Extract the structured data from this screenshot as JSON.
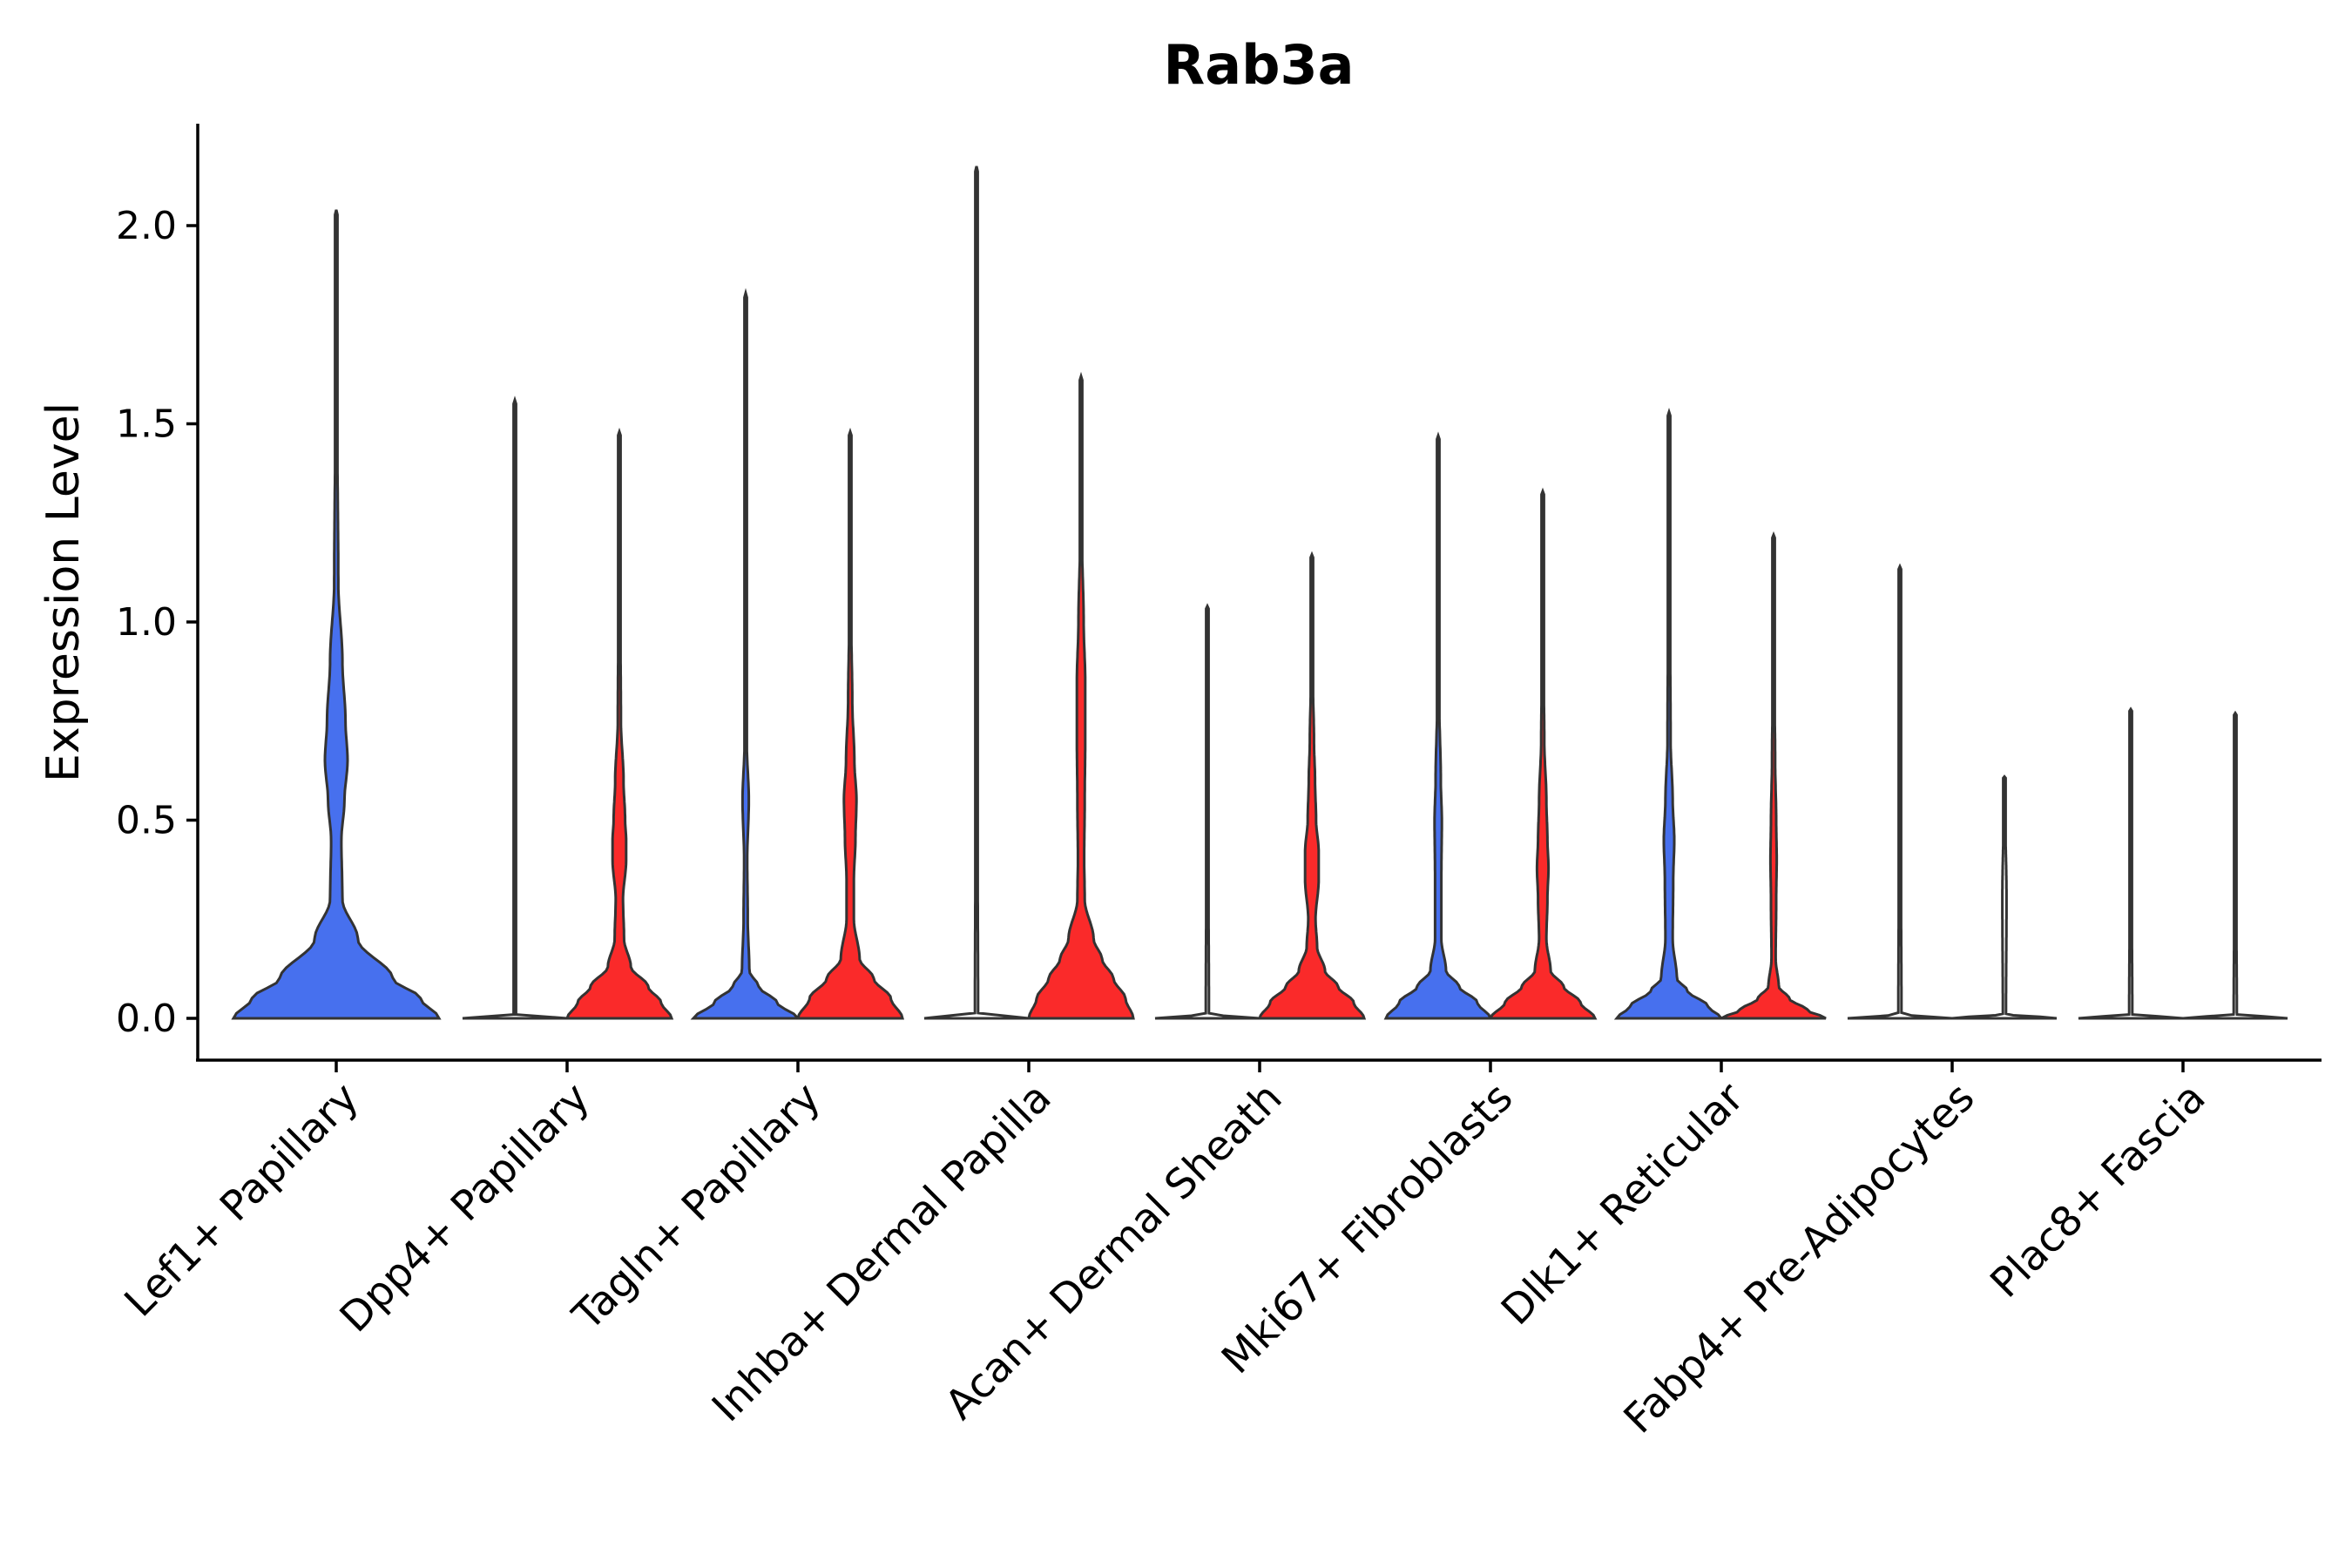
{
  "chart_data": {
    "type": "violin",
    "title": "Rab3a",
    "xlabel": "",
    "ylabel": "Expression Level",
    "ylim": [
      -0.11,
      2.25
    ],
    "yticks": [
      0.0,
      0.5,
      1.0,
      1.5,
      2.0
    ],
    "ytick_labels": [
      "0.0",
      "0.5",
      "1.0",
      "1.5",
      "2.0"
    ],
    "categories": [
      "Lef1+ Papillary",
      "Dpp4+ Papillary",
      "Tagln+ Papillary",
      "Inhba+ Dermal Papilla",
      "Acan+ Dermal Sheath",
      "Mki67+ Fibroblasts",
      "Dlk1+ Reticular",
      "Fabp4+ Pre-Adipocytes",
      "Plac8+ Fascia"
    ],
    "colors": {
      "blue": "#4770ee",
      "red": "#fa2a2a",
      "none": "#ffffff"
    },
    "violins": [
      {
        "category": "Lef1+ Papillary",
        "group": "blue",
        "side": "single",
        "max": 2.04,
        "profile": [
          [
            0,
            1
          ],
          [
            0.05,
            0.82
          ],
          [
            0.1,
            0.55
          ],
          [
            0.2,
            0.21
          ],
          [
            0.3,
            0.06
          ],
          [
            0.45,
            0.05
          ],
          [
            0.55,
            0.08
          ],
          [
            0.65,
            0.11
          ],
          [
            0.75,
            0.09
          ],
          [
            0.9,
            0.06
          ],
          [
            1.1,
            0.02
          ],
          [
            1.5,
            0.01
          ],
          [
            2.04,
            0
          ]
        ]
      },
      {
        "category": "Dpp4+ Papillary",
        "group": "none",
        "side": "left",
        "max": 1.56,
        "profile": [
          [
            0,
            1
          ],
          [
            0.01,
            0.02
          ],
          [
            0.5,
            0.02
          ],
          [
            1.56,
            0
          ]
        ]
      },
      {
        "category": "Dpp4+ Papillary",
        "group": "red",
        "side": "right",
        "max": 1.48,
        "profile": [
          [
            0,
            1
          ],
          [
            0.04,
            0.8
          ],
          [
            0.08,
            0.55
          ],
          [
            0.13,
            0.22
          ],
          [
            0.2,
            0.09
          ],
          [
            0.3,
            0.07
          ],
          [
            0.4,
            0.13
          ],
          [
            0.45,
            0.13
          ],
          [
            0.5,
            0.11
          ],
          [
            0.6,
            0.08
          ],
          [
            0.75,
            0.03
          ],
          [
            1.0,
            0.02
          ],
          [
            1.48,
            0
          ]
        ]
      },
      {
        "category": "Tagln+ Papillary",
        "group": "blue",
        "side": "left",
        "max": 1.83,
        "profile": [
          [
            0,
            1
          ],
          [
            0.04,
            0.6
          ],
          [
            0.08,
            0.25
          ],
          [
            0.12,
            0.07
          ],
          [
            0.25,
            0.04
          ],
          [
            0.4,
            0.03
          ],
          [
            0.55,
            0.06
          ],
          [
            0.7,
            0.02
          ],
          [
            1.0,
            0.01
          ],
          [
            1.83,
            0
          ]
        ]
      },
      {
        "category": "Tagln+ Papillary",
        "group": "red",
        "side": "right",
        "max": 1.48,
        "profile": [
          [
            0,
            1
          ],
          [
            0.05,
            0.78
          ],
          [
            0.1,
            0.45
          ],
          [
            0.15,
            0.18
          ],
          [
            0.25,
            0.07
          ],
          [
            0.35,
            0.07
          ],
          [
            0.45,
            0.1
          ],
          [
            0.55,
            0.12
          ],
          [
            0.65,
            0.08
          ],
          [
            0.8,
            0.04
          ],
          [
            1.0,
            0.02
          ],
          [
            1.48,
            0
          ]
        ]
      },
      {
        "category": "Inhba+ Dermal Papilla",
        "group": "none",
        "side": "left",
        "max": 2.15,
        "profile": [
          [
            0,
            1
          ],
          [
            0.01,
            0.03
          ],
          [
            0.5,
            0.02
          ],
          [
            2.15,
            0
          ]
        ]
      },
      {
        "category": "Inhba+ Dermal Papilla",
        "group": "red",
        "side": "right",
        "max": 1.62,
        "profile": [
          [
            0,
            1
          ],
          [
            0.05,
            0.85
          ],
          [
            0.1,
            0.62
          ],
          [
            0.15,
            0.4
          ],
          [
            0.2,
            0.24
          ],
          [
            0.3,
            0.07
          ],
          [
            0.4,
            0.06
          ],
          [
            0.55,
            0.07
          ],
          [
            0.7,
            0.08
          ],
          [
            0.85,
            0.08
          ],
          [
            1.0,
            0.05
          ],
          [
            1.2,
            0.02
          ],
          [
            1.62,
            0
          ]
        ]
      },
      {
        "category": "Acan+ Dermal Sheath",
        "group": "none",
        "side": "left",
        "max": 1.04,
        "profile": [
          [
            0,
            1
          ],
          [
            0.01,
            0.03
          ],
          [
            0.4,
            0.02
          ],
          [
            1.04,
            0
          ]
        ]
      },
      {
        "category": "Acan+ Dermal Sheath",
        "group": "red",
        "side": "right",
        "max": 1.17,
        "profile": [
          [
            0,
            1
          ],
          [
            0.04,
            0.8
          ],
          [
            0.08,
            0.5
          ],
          [
            0.12,
            0.25
          ],
          [
            0.18,
            0.1
          ],
          [
            0.25,
            0.07
          ],
          [
            0.35,
            0.13
          ],
          [
            0.42,
            0.13
          ],
          [
            0.5,
            0.08
          ],
          [
            0.6,
            0.06
          ],
          [
            0.7,
            0.04
          ],
          [
            0.85,
            0.02
          ],
          [
            1.17,
            0
          ]
        ]
      },
      {
        "category": "Mki67+ Fibroblasts",
        "group": "blue",
        "side": "left",
        "max": 1.47,
        "profile": [
          [
            0,
            1
          ],
          [
            0.04,
            0.75
          ],
          [
            0.08,
            0.4
          ],
          [
            0.12,
            0.15
          ],
          [
            0.2,
            0.06
          ],
          [
            0.35,
            0.06
          ],
          [
            0.5,
            0.07
          ],
          [
            0.6,
            0.05
          ],
          [
            0.8,
            0.02
          ],
          [
            1.0,
            0.01
          ],
          [
            1.47,
            0
          ]
        ]
      },
      {
        "category": "Mki67+ Fibroblasts",
        "group": "red",
        "side": "right",
        "max": 1.33,
        "profile": [
          [
            0,
            1
          ],
          [
            0.04,
            0.72
          ],
          [
            0.08,
            0.4
          ],
          [
            0.12,
            0.15
          ],
          [
            0.2,
            0.07
          ],
          [
            0.3,
            0.09
          ],
          [
            0.38,
            0.11
          ],
          [
            0.45,
            0.09
          ],
          [
            0.55,
            0.07
          ],
          [
            0.7,
            0.03
          ],
          [
            0.9,
            0.015
          ],
          [
            1.33,
            0
          ]
        ]
      },
      {
        "category": "Dlk1+ Reticular",
        "group": "blue",
        "side": "left",
        "max": 1.53,
        "profile": [
          [
            0,
            1
          ],
          [
            0.03,
            0.75
          ],
          [
            0.07,
            0.35
          ],
          [
            0.1,
            0.15
          ],
          [
            0.2,
            0.07
          ],
          [
            0.35,
            0.08
          ],
          [
            0.45,
            0.1
          ],
          [
            0.55,
            0.07
          ],
          [
            0.7,
            0.03
          ],
          [
            1.0,
            0.02
          ],
          [
            1.53,
            0
          ]
        ]
      },
      {
        "category": "Dlk1+ Reticular",
        "group": "red",
        "side": "right",
        "max": 1.22,
        "profile": [
          [
            0,
            1
          ],
          [
            0.02,
            0.65
          ],
          [
            0.05,
            0.3
          ],
          [
            0.08,
            0.1
          ],
          [
            0.15,
            0.04
          ],
          [
            0.3,
            0.05
          ],
          [
            0.4,
            0.06
          ],
          [
            0.5,
            0.05
          ],
          [
            0.65,
            0.03
          ],
          [
            0.85,
            0.015
          ],
          [
            1.22,
            0
          ]
        ]
      },
      {
        "category": "Fabp4+ Pre-Adipocytes",
        "group": "none",
        "side": "left",
        "max": 1.14,
        "profile": [
          [
            0,
            1
          ],
          [
            0.01,
            0.03
          ],
          [
            0.4,
            0.02
          ],
          [
            1.14,
            0
          ]
        ]
      },
      {
        "category": "Fabp4+ Pre-Adipocytes",
        "group": "none",
        "side": "right",
        "max": 0.61,
        "profile": [
          [
            0,
            1
          ],
          [
            0.01,
            0.03
          ],
          [
            0.3,
            0.04
          ],
          [
            0.61,
            0
          ]
        ]
      },
      {
        "category": "Plac8+ Fascia",
        "group": "none",
        "side": "left",
        "max": 0.78,
        "profile": [
          [
            0,
            1
          ],
          [
            0.01,
            0.03
          ],
          [
            0.3,
            0.02
          ],
          [
            0.78,
            0
          ]
        ]
      },
      {
        "category": "Plac8+ Fascia",
        "group": "none",
        "side": "right",
        "max": 0.77,
        "profile": [
          [
            0,
            1
          ],
          [
            0.01,
            0.03
          ],
          [
            0.3,
            0.02
          ],
          [
            0.77,
            0
          ]
        ]
      }
    ]
  }
}
